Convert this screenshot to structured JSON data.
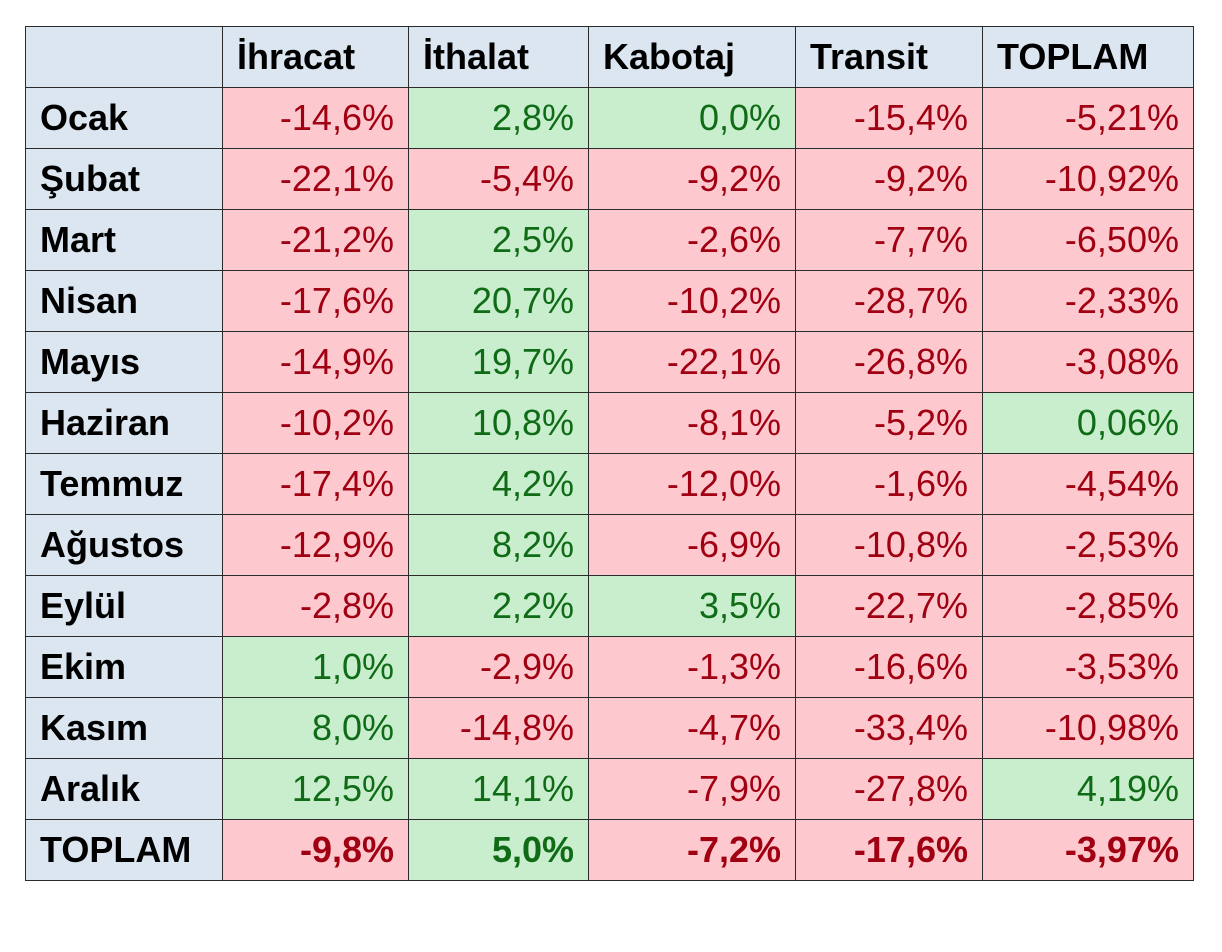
{
  "table": {
    "headers": [
      "",
      "İhracat",
      "İthalat",
      "Kabotaj",
      "Transit",
      "TOPLAM"
    ],
    "rows": [
      {
        "label": "Ocak",
        "cells": [
          "-14,6%",
          "2,8%",
          "0,0%",
          "-15,4%",
          "-5,21%"
        ],
        "status": [
          "neg",
          "pos",
          "pos",
          "neg",
          "neg"
        ]
      },
      {
        "label": "Şubat",
        "cells": [
          "-22,1%",
          "-5,4%",
          "-9,2%",
          "-9,2%",
          "-10,92%"
        ],
        "status": [
          "neg",
          "neg",
          "neg",
          "neg",
          "neg"
        ]
      },
      {
        "label": "Mart",
        "cells": [
          "-21,2%",
          "2,5%",
          "-2,6%",
          "-7,7%",
          "-6,50%"
        ],
        "status": [
          "neg",
          "pos",
          "neg",
          "neg",
          "neg"
        ]
      },
      {
        "label": "Nisan",
        "cells": [
          "-17,6%",
          "20,7%",
          "-10,2%",
          "-28,7%",
          "-2,33%"
        ],
        "status": [
          "neg",
          "pos",
          "neg",
          "neg",
          "neg"
        ]
      },
      {
        "label": "Mayıs",
        "cells": [
          "-14,9%",
          "19,7%",
          "-22,1%",
          "-26,8%",
          "-3,08%"
        ],
        "status": [
          "neg",
          "pos",
          "neg",
          "neg",
          "neg"
        ]
      },
      {
        "label": "Haziran",
        "cells": [
          "-10,2%",
          "10,8%",
          "-8,1%",
          "-5,2%",
          "0,06%"
        ],
        "status": [
          "neg",
          "pos",
          "neg",
          "neg",
          "pos"
        ]
      },
      {
        "label": "Temmuz",
        "cells": [
          "-17,4%",
          "4,2%",
          "-12,0%",
          "-1,6%",
          "-4,54%"
        ],
        "status": [
          "neg",
          "pos",
          "neg",
          "neg",
          "neg"
        ]
      },
      {
        "label": "Ağustos",
        "cells": [
          "-12,9%",
          "8,2%",
          "-6,9%",
          "-10,8%",
          "-2,53%"
        ],
        "status": [
          "neg",
          "pos",
          "neg",
          "neg",
          "neg"
        ]
      },
      {
        "label": "Eylül",
        "cells": [
          "-2,8%",
          "2,2%",
          "3,5%",
          "-22,7%",
          "-2,85%"
        ],
        "status": [
          "neg",
          "pos",
          "pos",
          "neg",
          "neg"
        ]
      },
      {
        "label": "Ekim",
        "cells": [
          "1,0%",
          "-2,9%",
          "-1,3%",
          "-16,6%",
          "-3,53%"
        ],
        "status": [
          "pos",
          "neg",
          "neg",
          "neg",
          "neg"
        ]
      },
      {
        "label": "Kasım",
        "cells": [
          "8,0%",
          "-14,8%",
          "-4,7%",
          "-33,4%",
          "-10,98%"
        ],
        "status": [
          "pos",
          "neg",
          "neg",
          "neg",
          "neg"
        ]
      },
      {
        "label": "Aralık",
        "cells": [
          "12,5%",
          "14,1%",
          "-7,9%",
          "-27,8%",
          "4,19%"
        ],
        "status": [
          "pos",
          "pos",
          "neg",
          "neg",
          "pos"
        ]
      },
      {
        "label": "TOPLAM",
        "cells": [
          "-9,8%",
          "5,0%",
          "-7,2%",
          "-17,6%",
          "-3,97%"
        ],
        "status": [
          "neg",
          "pos",
          "neg",
          "neg",
          "neg"
        ],
        "total": true
      }
    ]
  },
  "colors": {
    "header_bg": "#dbe6f1",
    "negative_bg": "#fdc9ce",
    "negative_text": "#a00012",
    "positive_bg": "#c8eecd",
    "positive_text": "#0f6b16",
    "border": "#2b2b2b"
  }
}
